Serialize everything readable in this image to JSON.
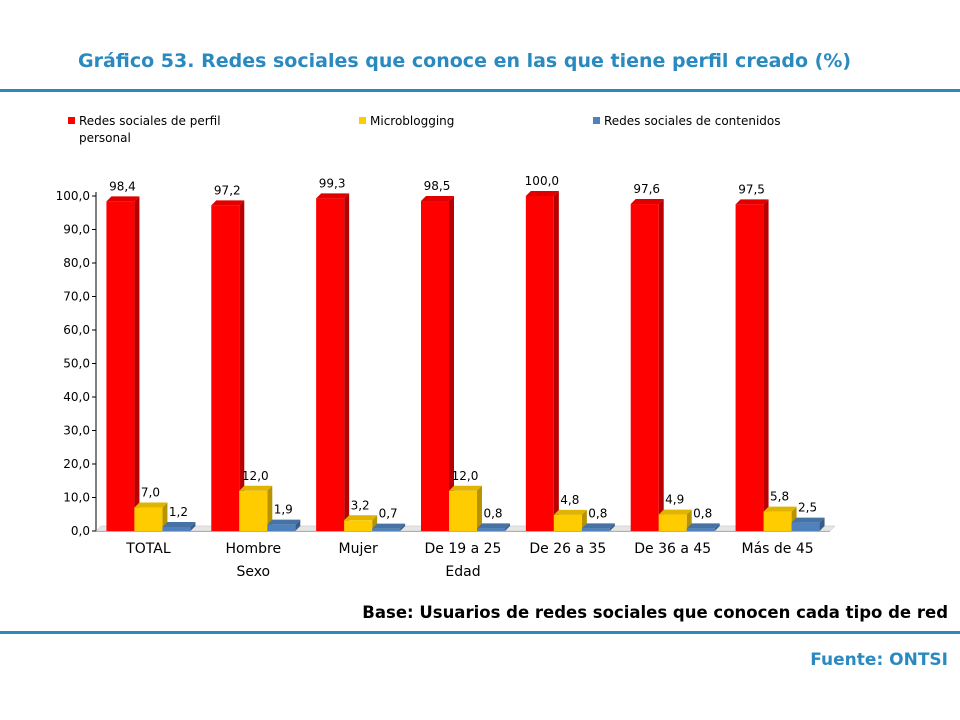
{
  "title": "Gráfico 53. Redes sociales que conoce en las que tiene perfil creado (%)",
  "base_note": "Base: Usuarios de redes sociales  que conocen cada tipo de red",
  "source_note": "Fuente: ONTSI",
  "colors": {
    "accent": "#2A8AC0",
    "series": [
      "#FF0000",
      "#FFCC00",
      "#4F81BD"
    ]
  },
  "chart_data": {
    "type": "bar",
    "title": "Gráfico 53. Redes sociales que conoce en las que tiene perfil creado (%)",
    "categories": [
      "TOTAL",
      "Hombre",
      "Mujer",
      "De 19 a 25",
      "De 26 a 35",
      "De 36 a 45",
      "Más de 45"
    ],
    "group_labels": [
      "Sexo",
      "Edad"
    ],
    "series": [
      {
        "name": "Redes sociales de perfil personal",
        "values": [
          98.4,
          97.2,
          99.3,
          98.5,
          100.0,
          97.6,
          97.5
        ],
        "labels": [
          "98,4",
          "97,2",
          "99,3",
          "98,5",
          "100,0",
          "97,6",
          "97,5"
        ]
      },
      {
        "name": "Microblogging",
        "values": [
          7.0,
          12.0,
          3.2,
          12.0,
          4.8,
          4.9,
          5.8
        ],
        "labels": [
          "7,0",
          "12,0",
          "3,2",
          "12,0",
          "4,8",
          "4,9",
          "5,8"
        ]
      },
      {
        "name": "Redes sociales de contenidos",
        "values": [
          1.2,
          1.9,
          0.7,
          0.8,
          0.8,
          0.8,
          2.5
        ],
        "labels": [
          "1,2",
          "1,9",
          "0,7",
          "0,8",
          "0,8",
          "0,8",
          "2,5"
        ]
      }
    ],
    "yticks": [
      "0,0",
      "10,0",
      "20,0",
      "30,0",
      "40,0",
      "50,0",
      "60,0",
      "70,0",
      "80,0",
      "90,0",
      "100,0"
    ],
    "ylim": [
      0,
      100
    ],
    "xlabel": "",
    "ylabel": "",
    "grid": false,
    "legend_position": "top"
  }
}
